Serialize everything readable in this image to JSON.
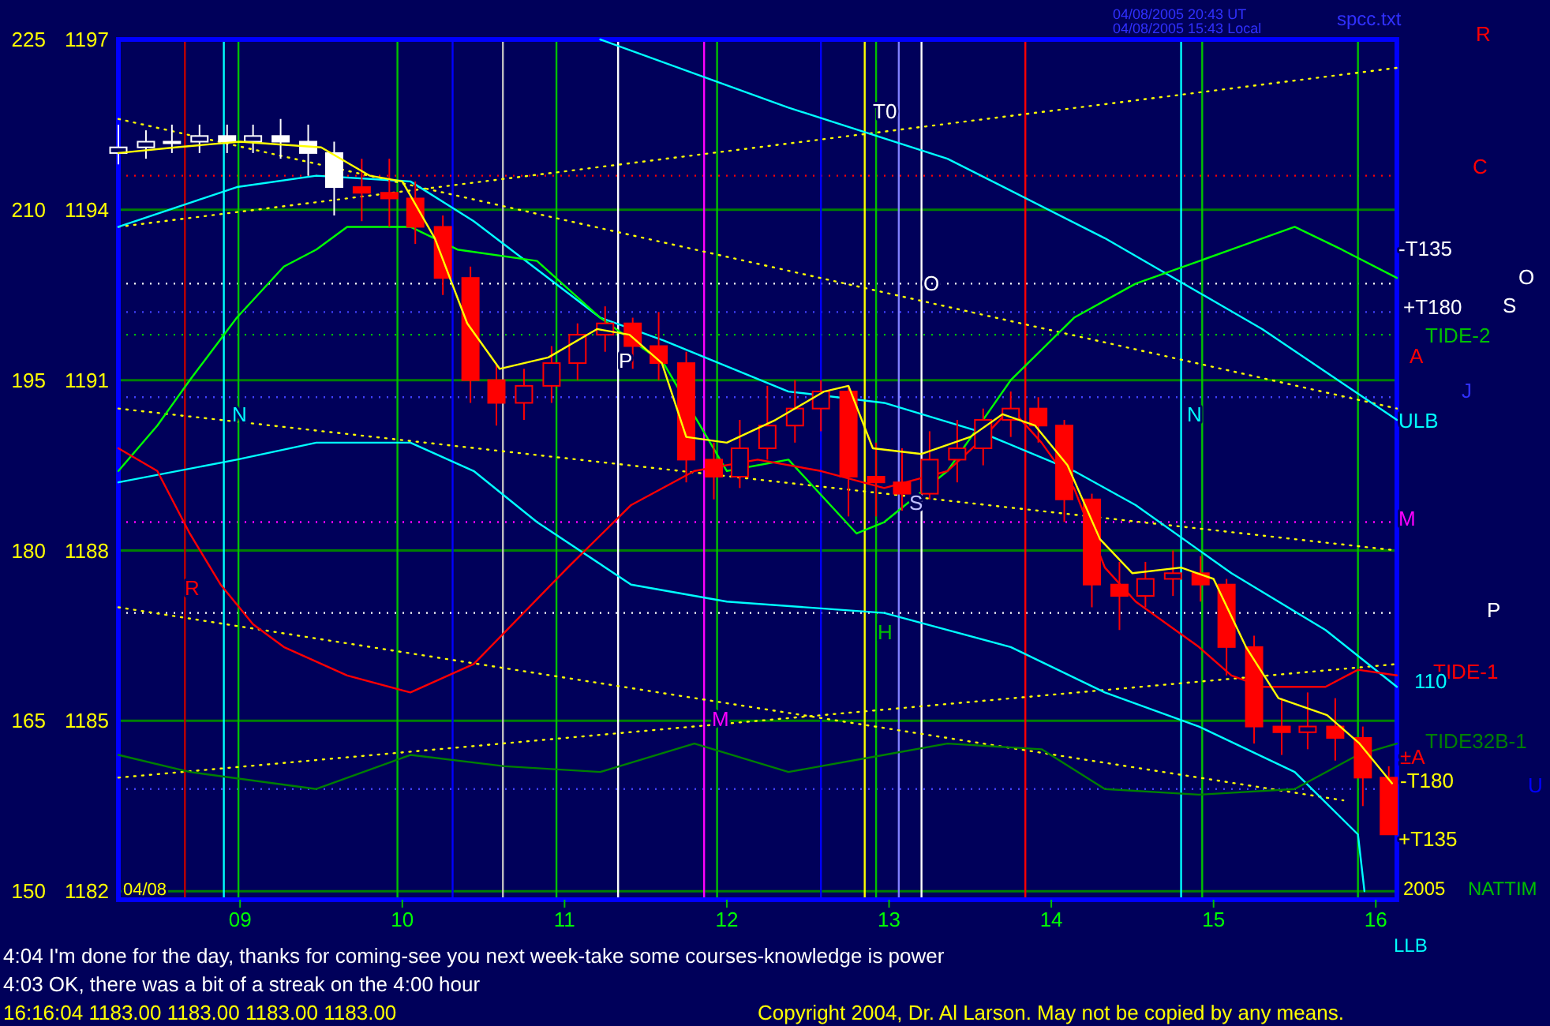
{
  "chart_data": {
    "type": "candlestick",
    "xlim": [
      8.25,
      16.13
    ],
    "ylim": [
      1181.85,
      1197
    ],
    "xticks": [
      {
        "value": 9,
        "label": "09"
      },
      10,
      11,
      12,
      13,
      14,
      15,
      16
    ],
    "yticks": [
      1182,
      1185,
      1188,
      1191,
      1194,
      1197
    ],
    "y2lim": [
      149.25,
      225
    ],
    "y2ticks": [
      150,
      165,
      180,
      195,
      210,
      225
    ],
    "grid": "y",
    "series": [
      {
        "type": "line",
        "color": "#ffff00",
        "line_style": "dotted",
        "x": [
          8.25,
          16.13
        ],
        "values": [
          1193.7,
          1196.5
        ]
      },
      {
        "type": "line",
        "color": "#ffff00",
        "line_style": "dotted",
        "x": [
          8.25,
          16.13
        ],
        "values": [
          1195.6,
          1190.5
        ]
      },
      {
        "type": "line",
        "color": "#ffff00",
        "line_style": "dotted",
        "x": [
          8.25,
          16.13
        ],
        "values": [
          1190.5,
          1188.0
        ]
      },
      {
        "type": "line",
        "color": "#ffff00",
        "line_style": "dotted",
        "x": [
          8.25,
          16.13
        ],
        "values": [
          1184.0,
          1186.0
        ]
      },
      {
        "type": "line",
        "color": "#ffff00",
        "line_style": "dotted",
        "x": [
          8.25,
          15.8
        ],
        "values": [
          1187.0,
          1183.6
        ]
      },
      {
        "type": "line",
        "color": "#00ffff",
        "x": [
          11.22,
          12.38,
          13.36,
          14.33,
          15.3,
          16.13
        ],
        "values": [
          1197.0,
          1195.8,
          1194.9,
          1193.5,
          1191.9,
          1190.3
        ]
      },
      {
        "type": "line",
        "color": "#00ffff",
        "x": [
          8.25,
          8.98,
          9.47,
          10.05,
          10.44,
          11.22,
          11.61,
          12.38,
          12.97,
          13.55,
          14.14,
          14.52,
          15.11,
          15.69,
          16.13
        ],
        "values": [
          1193.7,
          1194.4,
          1194.6,
          1194.5,
          1193.8,
          1192.1,
          1191.7,
          1190.8,
          1190.6,
          1190.1,
          1189.4,
          1188.8,
          1187.6,
          1186.6,
          1185.6
        ]
      },
      {
        "type": "line",
        "color": "#00ffff",
        "x": [
          8.25,
          8.98,
          9.47,
          10.05,
          10.44,
          10.83,
          11.41,
          12.0,
          12.97,
          13.75,
          14.33,
          14.91,
          15.5,
          15.89,
          15.93
        ],
        "values": [
          1189.2,
          1189.6,
          1189.9,
          1189.9,
          1189.4,
          1188.5,
          1187.4,
          1187.1,
          1186.9,
          1186.3,
          1185.5,
          1184.9,
          1184.1,
          1183.0,
          1182.0
        ]
      },
      {
        "type": "line",
        "color": "#00ff00",
        "x": [
          8.25,
          8.49,
          8.69,
          8.98,
          9.27,
          9.47,
          9.66,
          9.86,
          10.05,
          10.34,
          10.83,
          11.22,
          11.61,
          12.0,
          12.38,
          12.77,
          12.8,
          12.97,
          13.36,
          13.75,
          14.14,
          14.52,
          15.11,
          15.5,
          15.79,
          16.13
        ],
        "values": [
          1189.4,
          1190.2,
          1191.0,
          1192.1,
          1193.0,
          1193.3,
          1193.7,
          1193.7,
          1193.7,
          1193.3,
          1193.1,
          1192.1,
          1191.3,
          1189.4,
          1189.6,
          null,
          1188.3,
          1188.5,
          1189.4,
          1191.0,
          1192.1,
          1192.7,
          1193.3,
          1193.7,
          1193.3,
          1192.8
        ]
      },
      {
        "type": "line",
        "color": "#ff0000",
        "x": [
          8.25,
          8.49,
          8.69,
          8.88,
          9.08,
          9.27,
          9.66,
          10.05,
          10.44,
          11.02,
          11.41,
          11.8,
          12.19,
          12.58,
          12.97,
          13.36,
          13.55,
          13.75,
          13.94,
          14.14,
          14.33,
          14.52,
          14.91,
          15.11,
          15.3,
          15.69,
          15.89,
          16.13
        ],
        "values": [
          1189.8,
          1189.4,
          1188.3,
          1187.4,
          1186.7,
          1186.3,
          1185.8,
          1185.5,
          1186.0,
          1187.7,
          1188.8,
          1189.4,
          1189.6,
          1189.4,
          1189.1,
          1189.4,
          1189.9,
          1190.5,
          1189.9,
          1189.1,
          1187.7,
          1187.1,
          1186.3,
          1185.8,
          1185.6,
          1185.6,
          1185.9,
          1185.8
        ]
      },
      {
        "type": "line",
        "color": "#008000",
        "x": [
          8.25,
          8.69,
          9.47,
          10.05,
          10.63,
          11.22,
          11.8,
          12.38,
          12.97,
          13.36,
          13.94,
          14.33,
          14.91,
          15.5,
          15.89,
          16.13
        ],
        "values": [
          1184.4,
          1184.1,
          1183.8,
          1184.4,
          1184.2,
          1184.1,
          1184.6,
          1184.1,
          1184.4,
          1184.6,
          1184.5,
          1183.8,
          1183.7,
          1183.8,
          1184.4,
          1184.6
        ]
      },
      {
        "type": "candlestick",
        "color": "#ffffff",
        "x": [
          8.25,
          8.42,
          8.58,
          8.75,
          8.92,
          9.08,
          9.25,
          9.42,
          9.58
        ],
        "ohlc": [
          [
            1195.0,
            1195.5,
            1194.8,
            1195.1
          ],
          [
            1195.1,
            1195.4,
            1194.9,
            1195.2
          ],
          [
            1195.2,
            1195.5,
            1195.0,
            1195.2
          ],
          [
            1195.2,
            1195.5,
            1195.0,
            1195.3
          ],
          [
            1195.3,
            1195.5,
            1195.0,
            1195.2
          ],
          [
            1195.2,
            1195.5,
            1195.0,
            1195.3
          ],
          [
            1195.3,
            1195.6,
            1194.9,
            1195.2
          ],
          [
            1195.2,
            1195.5,
            1194.6,
            1195.0
          ],
          [
            1195.0,
            1195.2,
            1193.9,
            1194.4
          ]
        ]
      },
      {
        "type": "candlestick",
        "color": "#ff0000",
        "x": [
          9.75,
          9.92,
          10.08,
          10.25,
          10.42,
          10.58,
          10.75,
          10.92,
          11.08,
          11.25,
          11.42,
          11.58,
          11.75,
          11.92,
          12.08,
          12.25,
          12.42,
          12.58,
          12.75,
          12.92,
          13.08,
          13.25,
          13.42,
          13.58,
          13.75,
          13.92,
          14.08,
          14.25,
          14.42,
          14.58,
          14.75,
          14.92,
          15.08,
          15.25,
          15.42,
          15.58,
          15.75,
          15.92,
          16.08
        ],
        "ohlc": [
          [
            1194.4,
            1194.9,
            1193.8,
            1194.3
          ],
          [
            1194.3,
            1194.9,
            1193.7,
            1194.2
          ],
          [
            1194.2,
            1194.5,
            1193.4,
            1193.7
          ],
          [
            1193.7,
            1193.9,
            1192.5,
            1192.8
          ],
          [
            1192.8,
            1193.0,
            1190.6,
            1191.0
          ],
          [
            1191.0,
            1191.3,
            1190.2,
            1190.6
          ],
          [
            1190.6,
            1191.2,
            1190.3,
            1190.9
          ],
          [
            1190.9,
            1191.6,
            1190.6,
            1191.3
          ],
          [
            1191.3,
            1192.0,
            1191.0,
            1191.8
          ],
          [
            1191.8,
            1192.3,
            1191.5,
            1192.0
          ],
          [
            1192.0,
            1192.1,
            1191.2,
            1191.6
          ],
          [
            1191.6,
            1192.2,
            1191.0,
            1191.3
          ],
          [
            1191.3,
            1191.5,
            1189.2,
            1189.6
          ],
          [
            1189.6,
            1189.9,
            1188.9,
            1189.3
          ],
          [
            1189.3,
            1190.3,
            1189.1,
            1189.8
          ],
          [
            1189.8,
            1190.9,
            1189.6,
            1190.2
          ],
          [
            1190.2,
            1191.0,
            1189.9,
            1190.5
          ],
          [
            1190.5,
            1191.0,
            1190.1,
            1190.8
          ],
          [
            1190.8,
            1190.9,
            1188.6,
            1189.3
          ],
          [
            1189.3,
            1189.9,
            1188.6,
            1189.2
          ],
          [
            1189.2,
            1189.8,
            1188.7,
            1189.0
          ],
          [
            1189.0,
            1190.1,
            1188.9,
            1189.6
          ],
          [
            1189.6,
            1190.3,
            1189.2,
            1189.8
          ],
          [
            1189.8,
            1190.5,
            1189.5,
            1190.3
          ],
          [
            1190.3,
            1190.8,
            1190.0,
            1190.5
          ],
          [
            1190.5,
            1190.7,
            1189.9,
            1190.2
          ],
          [
            1190.2,
            1190.3,
            1188.5,
            1188.9
          ],
          [
            1188.9,
            1189.0,
            1187.0,
            1187.4
          ],
          [
            1187.4,
            1187.8,
            1186.6,
            1187.2
          ],
          [
            1187.2,
            1187.8,
            1187.0,
            1187.5
          ],
          [
            1187.5,
            1188.0,
            1187.2,
            1187.6
          ],
          [
            1187.6,
            1187.9,
            1187.1,
            1187.4
          ],
          [
            1187.4,
            1187.5,
            1185.8,
            1186.3
          ],
          [
            1186.3,
            1186.5,
            1184.6,
            1184.9
          ],
          [
            1184.9,
            1185.4,
            1184.4,
            1184.8
          ],
          [
            1184.8,
            1185.5,
            1184.5,
            1184.9
          ],
          [
            1184.9,
            1185.4,
            1184.3,
            1184.7
          ],
          [
            1184.7,
            1184.9,
            1183.5,
            1184.0
          ],
          [
            1184.0,
            1184.2,
            1183.0,
            1183.0
          ]
        ]
      },
      {
        "type": "line",
        "color": "#ffff00",
        "x": [
          8.25,
          8.6,
          9.0,
          9.5,
          9.8,
          10.0,
          10.2,
          10.4,
          10.6,
          10.9,
          11.2,
          11.4,
          11.6,
          11.75,
          12.0,
          12.3,
          12.6,
          12.75,
          12.9,
          13.2,
          13.5,
          13.7,
          13.9,
          14.1,
          14.3,
          14.5,
          14.8,
          15.0,
          15.2,
          15.4,
          15.7,
          15.9,
          16.1
        ],
        "values": [
          1195.0,
          1195.1,
          1195.2,
          1195.1,
          1194.6,
          1194.5,
          1193.5,
          1192.0,
          1191.2,
          1191.4,
          1191.9,
          1191.8,
          1191.3,
          1190.0,
          1189.9,
          1190.3,
          1190.8,
          1190.9,
          1189.8,
          1189.7,
          1190.0,
          1190.4,
          1190.2,
          1189.5,
          1188.2,
          1187.6,
          1187.7,
          1187.5,
          1186.3,
          1185.4,
          1185.1,
          1184.6,
          1183.9
        ]
      }
    ],
    "ref_lines": [
      {
        "axis": "y",
        "value": 1194.6,
        "color": "#ff0000",
        "line_style": "dotted"
      },
      {
        "axis": "y",
        "value": 1192.7,
        "color": "#ffffff",
        "line_style": "dotted"
      },
      {
        "axis": "y",
        "value": 1192.2,
        "color": "#4040ff",
        "line_style": "dotted"
      },
      {
        "axis": "y",
        "value": 1191.8,
        "color": "#00c000",
        "line_style": "dotted"
      },
      {
        "axis": "y",
        "value": 1190.7,
        "color": "#4040ff",
        "line_style": "dotted"
      },
      {
        "axis": "y",
        "value": 1188.5,
        "color": "#ff00ff",
        "line_style": "dotted"
      },
      {
        "axis": "y",
        "value": 1186.9,
        "color": "#ffffff",
        "line_style": "dotted"
      },
      {
        "axis": "y",
        "value": 1183.8,
        "color": "#4040ff",
        "line_style": "dotted"
      },
      {
        "axis": "x",
        "value": 8.66,
        "color": "#c00000"
      },
      {
        "axis": "x",
        "value": 8.9,
        "color": "#00ffff"
      },
      {
        "axis": "x",
        "value": 8.99,
        "color": "#00c000"
      },
      {
        "axis": "x",
        "value": 9.97,
        "color": "#00c000"
      },
      {
        "axis": "x",
        "value": 10.31,
        "color": "#0000ff"
      },
      {
        "axis": "x",
        "value": 10.62,
        "color": "#c0c0c0"
      },
      {
        "axis": "x",
        "value": 10.95,
        "color": "#00c000"
      },
      {
        "axis": "x",
        "value": 11.33,
        "color": "#ffffff"
      },
      {
        "axis": "x",
        "value": 11.86,
        "color": "#ff00ff"
      },
      {
        "axis": "x",
        "value": 11.94,
        "color": "#00c000"
      },
      {
        "axis": "x",
        "value": 12.58,
        "color": "#0000ff"
      },
      {
        "axis": "x",
        "value": 12.85,
        "color": "#ffff00"
      },
      {
        "axis": "x",
        "value": 12.92,
        "color": "#00c000"
      },
      {
        "axis": "x",
        "value": 13.06,
        "color": "#8080ff"
      },
      {
        "axis": "x",
        "value": 13.2,
        "color": "#ffffff"
      },
      {
        "axis": "x",
        "value": 13.84,
        "color": "#ff0000"
      },
      {
        "axis": "x",
        "value": 14.8,
        "color": "#00ffff"
      },
      {
        "axis": "x",
        "value": 14.93,
        "color": "#00c000"
      },
      {
        "axis": "x",
        "value": 15.89,
        "color": "#00c000"
      }
    ],
    "annotations": [
      "04/08/2005 20:43 UT",
      "04/08/2005 15:43 Local",
      "spcc.txt",
      "R",
      "C",
      "-T135",
      "O",
      "+T180",
      "S",
      "TIDE-2",
      "A",
      "J",
      "ULB",
      "M",
      "P",
      "TIDE-1",
      "110",
      "TIDE32B-1",
      "±A",
      "-T180",
      "U",
      "+T135",
      "2005",
      "NATTIM",
      "LLB",
      "T0",
      "O",
      "N",
      "N",
      "R",
      "M",
      "H",
      "S",
      "P",
      "04/08",
      "4:04 I'm done for the day, thanks for coming-see you next week-take some courses-knowledge is power",
      "4:03 OK, there was a bit of a streak on the 4:00 hour",
      "16:16:04  1183.00 1183.00 1183.00 1183.00",
      "Copyright 2004, Dr. Al Larson. May not be copied by any means."
    ]
  }
}
